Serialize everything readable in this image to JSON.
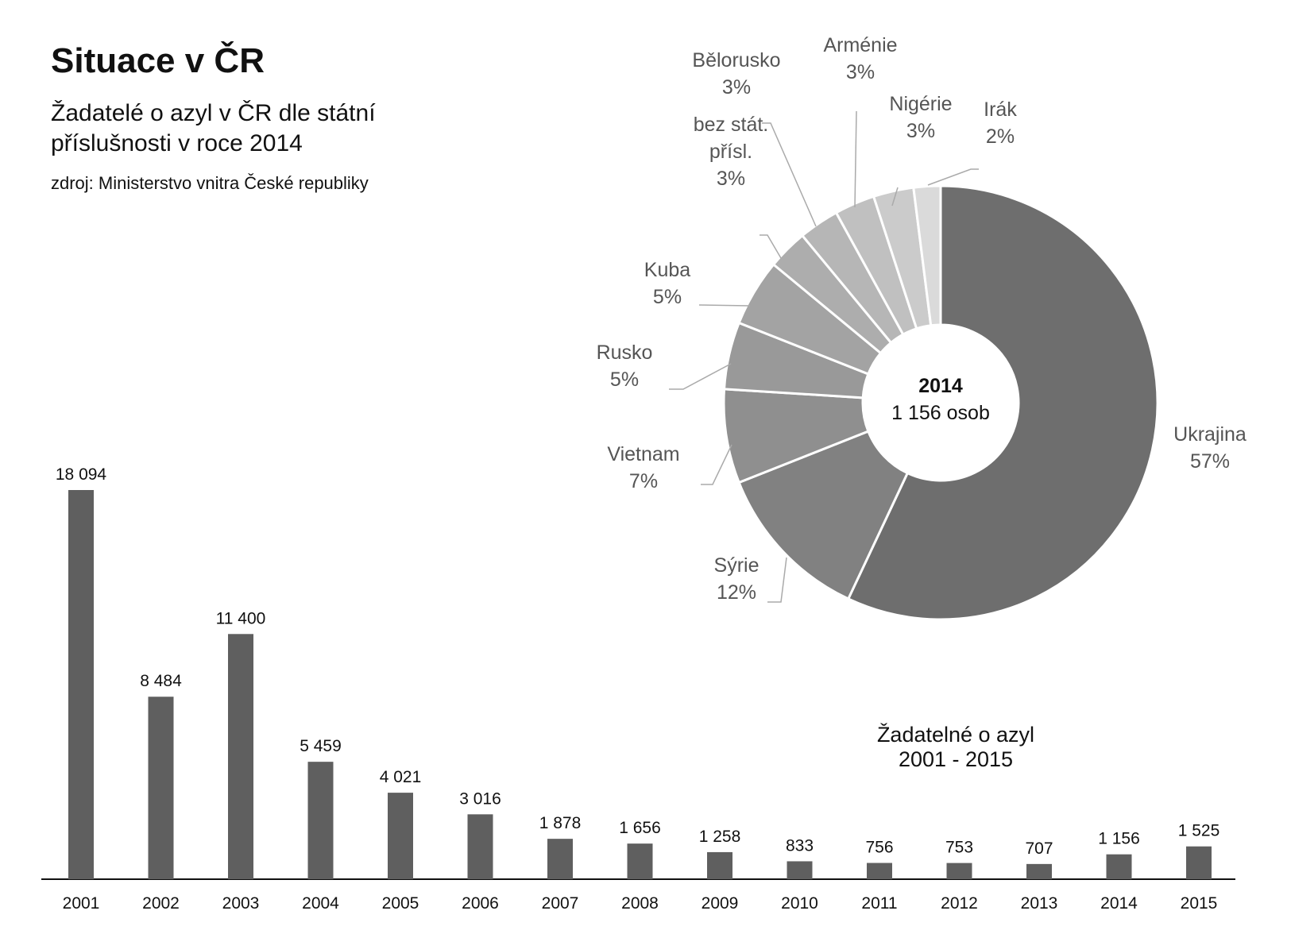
{
  "page": {
    "title": "Situace v ČR",
    "subtitle": "Žadatelé o azyl v ČR dle státní příslušnosti v roce 2014",
    "source": "zdroj: Ministerstvo vnitra České republiky"
  },
  "chart_data": [
    {
      "type": "bar",
      "title_lines": [
        "Žadatelné o azyl",
        "2001 - 2015"
      ],
      "categories": [
        "2001",
        "2002",
        "2003",
        "2004",
        "2005",
        "2006",
        "2007",
        "2008",
        "2009",
        "2010",
        "2011",
        "2012",
        "2013",
        "2014",
        "2015"
      ],
      "values": [
        18094,
        8484,
        11400,
        5459,
        4021,
        3016,
        1878,
        1656,
        1258,
        833,
        756,
        753,
        707,
        1156,
        1525
      ],
      "value_labels": [
        "18 094",
        "8 484",
        "11 400",
        "5 459",
        "4 021",
        "3 016",
        "1 878",
        "1 656",
        "1 258",
        "833",
        "756",
        "753",
        "707",
        "1 156",
        "1 525"
      ],
      "ylim": [
        0,
        18094
      ],
      "bar_color": "#5f5f5f"
    },
    {
      "type": "pie",
      "donut": true,
      "center_lines": [
        "2014",
        "1 156 osob"
      ],
      "slices": [
        {
          "label_lines": [
            "Ukrajina"
          ],
          "pct_label": "57%",
          "value": 57,
          "color": "#6e6e6e"
        },
        {
          "label_lines": [
            "Sýrie"
          ],
          "pct_label": "12%",
          "value": 12,
          "color": "#818181"
        },
        {
          "label_lines": [
            "Vietnam"
          ],
          "pct_label": "7%",
          "value": 7,
          "color": "#8f8f8f"
        },
        {
          "label_lines": [
            "Rusko"
          ],
          "pct_label": "5%",
          "value": 5,
          "color": "#999999"
        },
        {
          "label_lines": [
            "Kuba"
          ],
          "pct_label": "5%",
          "value": 5,
          "color": "#a3a3a3"
        },
        {
          "label_lines": [
            "bez stát.",
            "přísl."
          ],
          "pct_label": "3%",
          "value": 3,
          "color": "#adadad"
        },
        {
          "label_lines": [
            "Bělorusko"
          ],
          "pct_label": "3%",
          "value": 3,
          "color": "#b6b6b6"
        },
        {
          "label_lines": [
            "Arménie"
          ],
          "pct_label": "3%",
          "value": 3,
          "color": "#c0c0c0"
        },
        {
          "label_lines": [
            "Nigérie"
          ],
          "pct_label": "3%",
          "value": 3,
          "color": "#cbcbcb"
        },
        {
          "label_lines": [
            "Irák"
          ],
          "pct_label": "2%",
          "value": 2,
          "color": "#dadada"
        }
      ]
    }
  ]
}
